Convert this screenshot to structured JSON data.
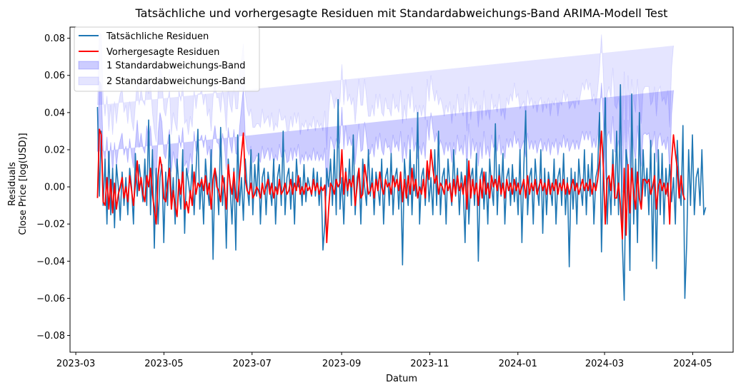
{
  "chart_data": {
    "type": "line",
    "title": "Tatsächliche und vorhergesagte Residuen mit Standardabweichungs-Band ARIMA-Modell Test",
    "xlabel": "Datum",
    "ylabel_lines": [
      "Residuals",
      "Close Price [log(USD)]"
    ],
    "x_ticks": [
      "2023-03",
      "2023-05",
      "2023-07",
      "2023-09",
      "2023-11",
      "2024-01",
      "2024-03",
      "2024-05"
    ],
    "y_ticks": [
      "−0.08",
      "−0.06",
      "−0.04",
      "−0.02",
      "0.00",
      "0.02",
      "0.04",
      "0.06",
      "0.08"
    ],
    "x_start_date": "2023-03-16",
    "x_end_date": "2024-05-10",
    "xlim": [
      "2023-02-25",
      "2024-05-29"
    ],
    "ylim": [
      -0.089,
      0.086
    ],
    "grid": false,
    "legend_position": "top-left",
    "colors": {
      "actual": "#1f77b4",
      "predicted": "#ff0000",
      "band1": "#0000ff",
      "band2": "#0000ff"
    },
    "series": [
      {
        "name": "Tatsächliche Residuen",
        "role": "actual",
        "values": [
          0.043,
          -0.005,
          0.03,
          -0.01,
          0.015,
          -0.02,
          0.019,
          -0.015,
          0.01,
          -0.022,
          0.012,
          0.0,
          -0.018,
          0.008,
          -0.01,
          0.005,
          -0.015,
          0.01,
          0.0,
          -0.02,
          0.018,
          -0.005,
          0.012,
          0.003,
          -0.008,
          0.015,
          -0.01,
          0.036,
          -0.015,
          0.02,
          -0.033,
          0.01,
          -0.02,
          0.005,
          0.012,
          -0.03,
          0.008,
          -0.01,
          0.028,
          -0.01,
          0.005,
          -0.02,
          0.015,
          0.0,
          -0.012,
          0.02,
          -0.025,
          0.01,
          0.003,
          -0.006,
          0.012,
          -0.015,
          0.008,
          0.031,
          -0.012,
          0.005,
          -0.02,
          0.015,
          0.0,
          -0.01,
          0.02,
          -0.039,
          0.01,
          0.005,
          -0.015,
          0.032,
          -0.01,
          0.005,
          -0.033,
          0.015,
          0.0,
          -0.02,
          0.01,
          -0.034,
          0.028,
          -0.01,
          0.005,
          -0.018,
          0.015,
          0.0,
          -0.01,
          0.02,
          -0.015,
          0.012,
          -0.005,
          0.018,
          -0.02,
          0.005,
          0.01,
          -0.015,
          0.008,
          0.0,
          -0.01,
          0.015,
          -0.02,
          0.005,
          0.012,
          -0.01,
          0.03,
          -0.015,
          0.005,
          0.01,
          -0.012,
          0.008,
          -0.02,
          0.015,
          0.0,
          0.005,
          -0.01,
          0.012,
          -0.008,
          0.005,
          0.0,
          -0.005,
          0.01,
          -0.005,
          0.008,
          -0.01,
          0.005,
          -0.034,
          -0.02,
          0.01,
          0.0,
          0.015,
          -0.01,
          0.02,
          -0.015,
          0.047,
          -0.012,
          0.005,
          -0.02,
          0.01,
          -0.005,
          0.015,
          -0.01,
          0.028,
          -0.015,
          0.005,
          0.01,
          -0.02,
          0.015,
          0.0,
          -0.01,
          0.02,
          -0.005,
          0.01,
          -0.015,
          0.008,
          0.0,
          -0.01,
          0.015,
          -0.02,
          0.005,
          0.01,
          -0.01,
          0.018,
          -0.015,
          0.005,
          0.01,
          -0.012,
          0.008,
          -0.042,
          0.015,
          0.0,
          -0.01,
          0.02,
          -0.015,
          0.012,
          -0.005,
          0.04,
          -0.02,
          0.005,
          0.01,
          -0.01,
          0.012,
          -0.008,
          0.005,
          -0.015,
          0.02,
          -0.01,
          0.03,
          -0.015,
          0.005,
          0.01,
          -0.02,
          0.015,
          0.0,
          -0.01,
          0.02,
          -0.005,
          0.01,
          -0.015,
          0.008,
          0.0,
          -0.03,
          0.015,
          -0.02,
          0.005,
          0.01,
          -0.01,
          0.018,
          -0.04,
          0.005,
          0.01,
          -0.012,
          0.008,
          -0.02,
          0.015,
          0.0,
          -0.01,
          0.034,
          -0.015,
          0.012,
          -0.005,
          0.018,
          -0.02,
          0.005,
          0.01,
          -0.01,
          0.012,
          -0.008,
          0.005,
          -0.015,
          0.02,
          -0.03,
          0.01,
          0.041,
          -0.015,
          0.005,
          0.01,
          -0.02,
          0.015,
          0.0,
          -0.01,
          0.02,
          -0.025,
          0.01,
          -0.015,
          0.008,
          0.0,
          -0.01,
          0.015,
          -0.02,
          0.005,
          0.01,
          -0.01,
          0.018,
          -0.015,
          0.005,
          -0.043,
          0.01,
          -0.012,
          0.008,
          -0.02,
          0.015,
          0.0,
          -0.01,
          0.02,
          -0.015,
          0.012,
          -0.005,
          0.018,
          -0.02,
          0.005,
          0.01,
          0.04,
          -0.035,
          0.012,
          0.048,
          -0.02,
          0.005,
          -0.015,
          0.02,
          -0.01,
          0.03,
          -0.015,
          0.055,
          -0.03,
          -0.061,
          0.02,
          0.01,
          -0.045,
          0.05,
          -0.02,
          0.015,
          -0.03,
          0.04,
          -0.01,
          0.02,
          -0.005,
          0.01,
          -0.015,
          0.025,
          -0.04,
          0.018,
          -0.044,
          0.02,
          -0.015,
          0.018,
          -0.02,
          0.01,
          -0.005,
          0.012,
          -0.008,
          0.005,
          -0.02,
          0.025,
          0.0,
          -0.01,
          0.033,
          -0.06,
          -0.03,
          0.02,
          -0.01,
          0.028,
          -0.015,
          0.005,
          0.01,
          -0.01,
          0.02,
          -0.015,
          -0.011
        ]
      },
      {
        "name": "Vorhergesagte Residuen",
        "role": "predicted",
        "values": [
          -0.006,
          0.031,
          0.028,
          -0.008,
          -0.01,
          0.005,
          -0.012,
          0.004,
          -0.014,
          0.002,
          -0.012,
          -0.004,
          0.0,
          0.005,
          -0.006,
          0.0,
          -0.008,
          0.006,
          -0.002,
          -0.01,
          0.002,
          0.014,
          -0.002,
          0.005,
          -0.004,
          -0.008,
          0.006,
          0.0,
          0.01,
          -0.004,
          -0.012,
          -0.02,
          0.006,
          0.016,
          0.01,
          -0.006,
          -0.008,
          0.002,
          0.01,
          -0.012,
          -0.002,
          -0.01,
          -0.016,
          0.004,
          -0.004,
          0.008,
          -0.012,
          -0.008,
          -0.014,
          -0.002,
          -0.01,
          0.008,
          -0.004,
          0.002,
          0.0,
          0.004,
          -0.002,
          0.006,
          -0.004,
          0.002,
          -0.012,
          0.004,
          0.01,
          0.0,
          -0.002,
          -0.008,
          0.006,
          0.0,
          -0.012,
          0.012,
          0.002,
          -0.004,
          0.008,
          -0.006,
          -0.008,
          0.006,
          0.018,
          0.029,
          0.004,
          -0.002,
          -0.004,
          0.002,
          -0.006,
          -0.004,
          0.0,
          -0.002,
          -0.006,
          0.002,
          -0.004,
          0.0,
          0.004,
          -0.004,
          0.002,
          -0.006,
          0.0,
          -0.004,
          0.004,
          -0.004,
          -0.002,
          0.002,
          -0.004,
          -0.002,
          0.004,
          -0.004,
          0.002,
          -0.002,
          0.006,
          -0.004,
          0.0,
          -0.004,
          0.002,
          -0.002,
          0.0,
          -0.004,
          0.004,
          -0.002,
          0.002,
          -0.004,
          0.0,
          -0.002,
          0.001,
          -0.03,
          -0.012,
          0.002,
          0.0,
          -0.004,
          0.004,
          0.0,
          0.002,
          0.02,
          -0.004,
          0.008,
          -0.002,
          0.004,
          0.0,
          0.006,
          -0.01,
          0.0,
          0.01,
          -0.006,
          -0.004,
          0.012,
          0.004,
          -0.004,
          -0.002,
          0.002,
          -0.006,
          0.004,
          -0.002,
          0.008,
          0.0,
          -0.004,
          0.004,
          0.0,
          0.002,
          -0.004,
          0.006,
          0.0,
          0.004,
          -0.002,
          0.008,
          -0.008,
          0.004,
          -0.006,
          0.006,
          -0.004,
          0.01,
          -0.002,
          0.004,
          -0.006,
          0.0,
          -0.004,
          0.004,
          -0.006,
          0.014,
          0.004,
          0.02,
          0.01,
          0.002,
          0.006,
          -0.004,
          0.002,
          0.0,
          -0.004,
          0.004,
          -0.002,
          0.002,
          -0.008,
          0.004,
          -0.004,
          0.006,
          -0.002,
          0.002,
          -0.004,
          0.006,
          -0.012,
          0.014,
          -0.006,
          0.004,
          -0.004,
          0.002,
          -0.01,
          0.004,
          -0.006,
          0.008,
          -0.004,
          0.002,
          -0.006,
          0.006,
          0.0,
          0.004,
          -0.002,
          0.006,
          -0.004,
          0.002,
          -0.006,
          0.004,
          -0.002,
          0.002,
          -0.004,
          0.004,
          -0.002,
          0.002,
          -0.004,
          0.0,
          0.004,
          -0.006,
          0.006,
          -0.004,
          0.002,
          -0.002,
          0.004,
          -0.004,
          0.0,
          0.004,
          -0.002,
          0.002,
          -0.004,
          0.004,
          -0.004,
          0.002,
          -0.002,
          0.004,
          -0.004,
          0.002,
          -0.002,
          0.004,
          -0.004,
          0.002,
          -0.004,
          0.0,
          0.004,
          -0.002,
          0.002,
          -0.004,
          0.0,
          0.004,
          -0.002,
          0.002,
          -0.002,
          0.004,
          -0.004,
          0.002,
          -0.002,
          0.004,
          0.014,
          0.03,
          0.01,
          -0.02,
          0.004,
          0.006,
          -0.002,
          0.012,
          -0.006,
          -0.006,
          0.002,
          -0.01,
          -0.028,
          0.01,
          -0.026,
          0.012,
          -0.014,
          0.01,
          -0.004,
          -0.012,
          0.008,
          -0.006,
          -0.012,
          0.004,
          0.004,
          0.002,
          0.004,
          -0.004,
          0.0,
          0.006,
          -0.012,
          0.0,
          0.004,
          -0.002,
          0.002,
          -0.004,
          0.002,
          -0.02,
          0.014,
          0.028,
          0.018,
          0.01,
          -0.006,
          0.006,
          -0.004,
          -0.007
        ]
      }
    ],
    "bands": [
      {
        "name": "1 Standardabweichungs-Band",
        "sigma": 1,
        "opacity": 0.2
      },
      {
        "name": "2 Standardabweichungs-Band",
        "sigma": 2,
        "opacity": 0.1
      }
    ],
    "sigma_values": [
      0.025,
      0.026,
      0.027,
      0.028,
      0.024,
      0.022,
      0.021,
      0.02,
      0.021,
      0.022,
      0.023,
      0.024,
      0.025,
      0.024,
      0.023,
      0.022,
      0.021,
      0.02,
      0.019,
      0.02,
      0.021,
      0.022,
      0.023,
      0.024,
      0.025,
      0.026,
      0.027,
      0.025,
      0.023,
      0.022,
      0.021,
      0.022,
      0.023,
      0.024,
      0.025,
      0.024,
      0.023,
      0.022,
      0.021,
      0.02,
      0.021,
      0.022,
      0.023,
      0.024,
      0.025,
      0.024,
      0.023,
      0.022,
      0.021,
      0.02,
      0.021,
      0.022,
      0.023,
      0.024,
      0.025,
      0.024,
      0.023,
      0.022,
      0.021,
      0.02,
      0.021,
      0.022,
      0.023,
      0.024,
      0.025,
      0.024,
      0.023,
      0.022,
      0.021,
      0.02,
      0.021,
      0.022,
      0.023,
      0.024,
      0.025,
      0.026,
      0.025,
      0.024,
      0.023,
      0.022,
      0.021,
      0.02,
      0.019,
      0.018,
      0.017,
      0.018,
      0.019,
      0.02,
      0.019,
      0.018,
      0.017,
      0.018,
      0.019,
      0.018,
      0.017,
      0.018,
      0.019,
      0.02,
      0.019,
      0.018,
      0.017,
      0.016,
      0.017,
      0.018,
      0.019,
      0.018,
      0.017,
      0.016,
      0.017,
      0.018,
      0.017,
      0.016,
      0.017,
      0.018,
      0.017,
      0.016,
      0.017,
      0.018,
      0.017,
      0.016,
      0.02,
      0.025,
      0.026,
      0.025,
      0.024,
      0.023,
      0.022,
      0.021,
      0.022,
      0.023,
      0.024,
      0.025,
      0.024,
      0.023,
      0.022,
      0.021,
      0.022,
      0.023,
      0.024,
      0.025,
      0.024,
      0.023,
      0.022,
      0.021,
      0.02,
      0.021,
      0.022,
      0.023,
      0.022,
      0.021,
      0.02,
      0.021,
      0.022,
      0.021,
      0.02,
      0.021,
      0.022,
      0.021,
      0.02,
      0.021,
      0.022,
      0.021,
      0.02,
      0.021,
      0.022,
      0.023,
      0.022,
      0.021,
      0.02,
      0.021,
      0.022,
      0.021,
      0.02,
      0.021,
      0.022,
      0.021,
      0.02,
      0.021,
      0.022,
      0.023,
      0.024,
      0.023,
      0.022,
      0.021,
      0.02,
      0.021,
      0.022,
      0.021,
      0.02,
      0.021,
      0.022,
      0.021,
      0.02,
      0.021,
      0.022,
      0.021,
      0.02,
      0.021,
      0.022,
      0.023,
      0.022,
      0.021,
      0.02,
      0.021,
      0.022,
      0.021,
      0.02,
      0.021,
      0.022,
      0.021,
      0.02,
      0.021,
      0.022,
      0.021,
      0.02,
      0.021,
      0.022,
      0.023,
      0.024,
      0.025,
      0.026,
      0.025,
      0.024,
      0.023,
      0.022,
      0.021,
      0.022,
      0.023,
      0.024,
      0.023,
      0.022,
      0.021,
      0.022,
      0.023,
      0.022,
      0.021,
      0.022,
      0.023,
      0.022,
      0.021,
      0.022,
      0.023,
      0.022,
      0.021,
      0.022,
      0.023,
      0.024,
      0.025,
      0.024,
      0.023,
      0.022,
      0.021,
      0.022,
      0.023,
      0.024,
      0.025,
      0.026,
      0.027,
      0.028,
      0.027,
      0.026,
      0.025,
      0.024,
      0.023,
      0.024,
      0.025,
      0.026,
      0.025,
      0.024,
      0.023,
      0.024,
      0.025,
      0.026,
      0.025,
      0.024,
      0.023,
      0.024,
      0.025,
      0.026,
      0.025,
      0.024,
      0.023,
      0.024,
      0.025,
      0.026,
      0.025,
      0.024,
      0.023,
      0.024,
      0.025,
      0.026,
      0.025,
      0.024,
      0.023,
      0.024,
      0.025,
      0.026,
      0.025,
      0.024,
      0.023,
      0.024,
      0.025,
      0.026,
      0.025,
      0.024
    ]
  }
}
